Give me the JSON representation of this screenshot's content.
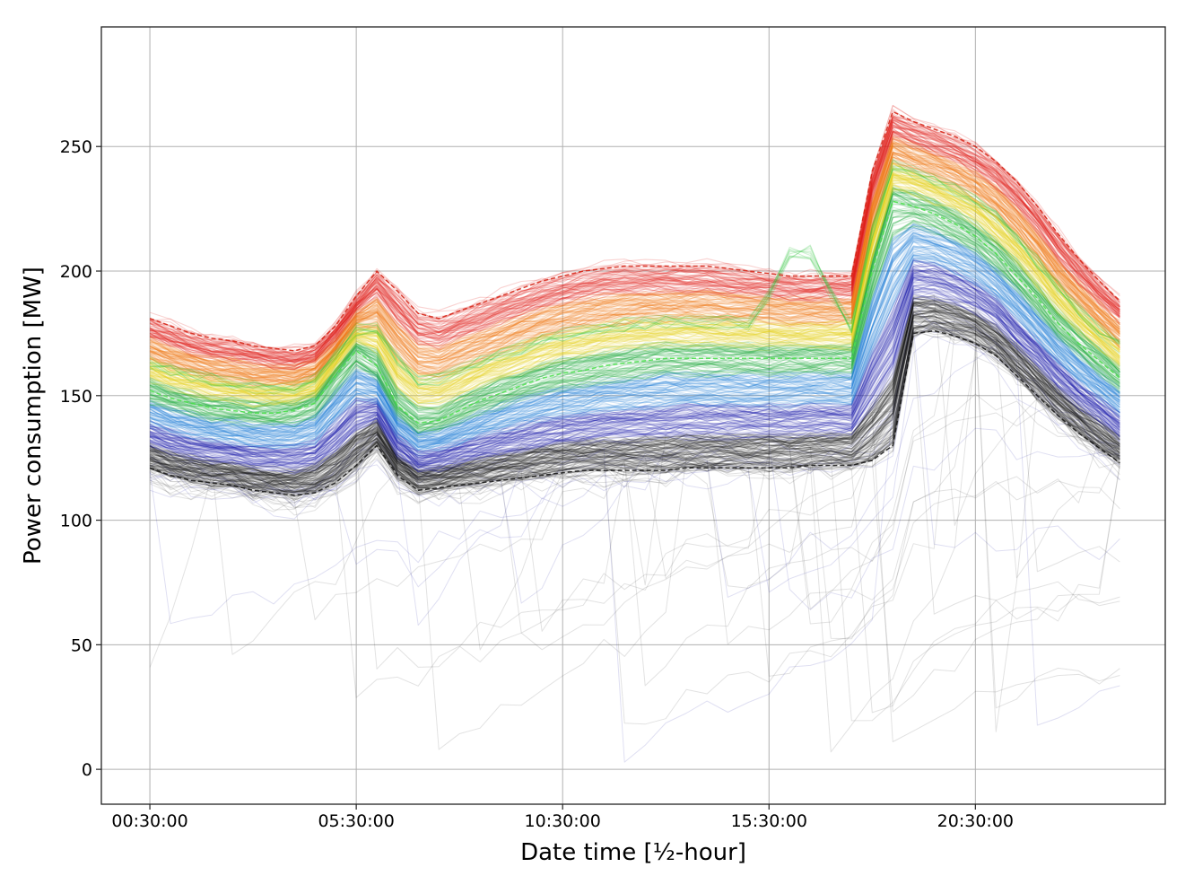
{
  "chart_data": {
    "type": "line",
    "xlabel": "Date time [½-hour]",
    "ylabel": "Power consumption [MW]",
    "x_tick_labels": [
      "00:30:00",
      "05:30:00",
      "10:30:00",
      "15:30:00",
      "20:30:00"
    ],
    "x_tick_index": [
      0,
      10,
      20,
      30,
      40
    ],
    "y_ticks": [
      0,
      50,
      100,
      150,
      200,
      250
    ],
    "xlim": [
      -2.35,
      49.2
    ],
    "ylim": [
      -14,
      298
    ],
    "grid": true,
    "n_half_hours": 48,
    "profile_colors": [
      "#111111",
      "#1a1aa8",
      "#1f7fd6",
      "#1faa3a",
      "#e8d21c",
      "#ee7a14",
      "#e0201a"
    ],
    "series": [
      {
        "values": [
          121,
          118,
          116,
          115,
          114,
          112,
          111,
          110,
          111,
          115,
          122,
          130,
          118,
          112,
          113,
          114,
          115,
          116,
          117,
          118,
          119,
          120,
          120,
          120,
          120,
          120,
          121,
          121,
          121,
          121,
          121,
          121,
          122,
          122,
          122,
          124,
          130,
          175,
          176,
          174,
          171,
          166,
          158,
          150,
          142,
          135,
          129,
          123
        ]
      },
      {
        "values": [
          181,
          178,
          175,
          173,
          172,
          170,
          169,
          168,
          170,
          178,
          190,
          200,
          192,
          183,
          181,
          184,
          187,
          190,
          193,
          196,
          198,
          200,
          201,
          202,
          202,
          202,
          202,
          202,
          201,
          200,
          199,
          198,
          198,
          198,
          198,
          240,
          264,
          260,
          257,
          254,
          250,
          244,
          236,
          226,
          215,
          205,
          196,
          188
        ]
      },
      {
        "values": [
          152,
          149,
          147,
          145,
          144,
          143,
          143,
          144,
          147,
          158,
          168,
          162,
          146,
          139,
          140,
          144,
          148,
          151,
          154,
          157,
          159,
          160,
          162,
          163,
          164,
          165,
          165,
          165,
          165,
          165,
          165,
          165,
          165,
          165,
          165,
          200,
          228,
          226,
          223,
          219,
          214,
          207,
          198,
          189,
          179,
          171,
          164,
          157
        ]
      }
    ]
  }
}
